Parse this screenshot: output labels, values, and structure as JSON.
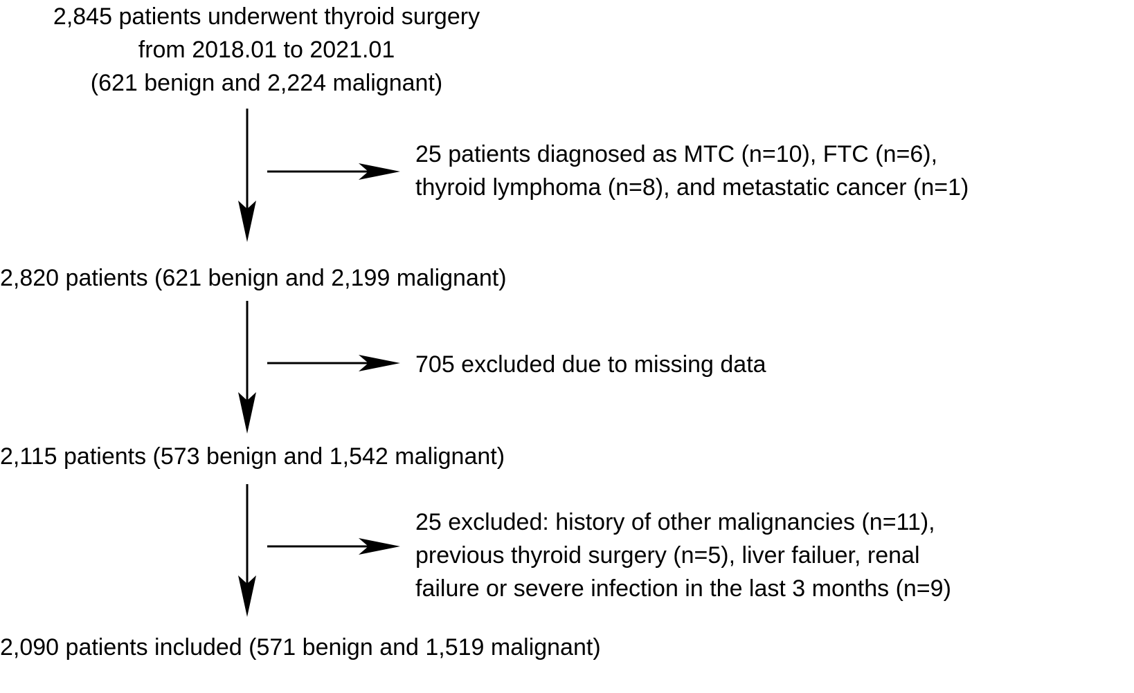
{
  "flowchart": {
    "start": {
      "lines": [
        "2,845 patients underwent thyroid surgery",
        "from 2018.01 to 2021.01",
        "(621 benign and 2,224 malignant)"
      ]
    },
    "exclusion_1": {
      "lines": [
        "25 patients  diagnosed as  MTC (n=10), FTC (n=6),",
        "thyroid lymphoma (n=8), and metastatic cancer (n=1)"
      ]
    },
    "step_2": {
      "text": "2,820 patients (621 benign and 2,199 malignant)"
    },
    "exclusion_2": {
      "text": "705 excluded due to missing data"
    },
    "step_3": {
      "text": "2,115 patients (573 benign and 1,542 malignant)"
    },
    "exclusion_3": {
      "lines": [
        "25 excluded: history of other malignancies (n=11),",
        "previous thyroid surgery (n=5), liver failuer, renal",
        "failure or severe infection in  the last 3 months (n=9)"
      ]
    },
    "final": {
      "text": "2,090 patients included (571 benign and 1,519 malignant)"
    }
  },
  "colors": {
    "text": "#000000",
    "arrows": "#000000",
    "background": "#ffffff"
  }
}
